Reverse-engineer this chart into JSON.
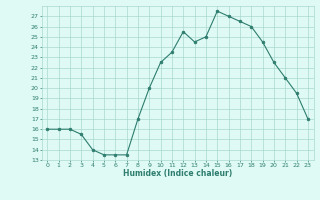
{
  "x": [
    0,
    1,
    2,
    3,
    4,
    5,
    6,
    7,
    8,
    9,
    10,
    11,
    12,
    13,
    14,
    15,
    16,
    17,
    18,
    19,
    20,
    21,
    22,
    23
  ],
  "y": [
    16,
    16,
    16,
    15.5,
    14,
    13.5,
    13.5,
    13.5,
    17,
    20,
    22.5,
    23.5,
    25.5,
    24.5,
    25,
    27.5,
    27,
    26.5,
    26,
    24.5,
    22.5,
    21,
    19.5,
    17
  ],
  "title": "",
  "xlabel": "Humidex (Indice chaleur)",
  "ylabel": "",
  "xlim": [
    -0.5,
    23.5
  ],
  "ylim": [
    13,
    28
  ],
  "yticks": [
    13,
    14,
    15,
    16,
    17,
    18,
    19,
    20,
    21,
    22,
    23,
    24,
    25,
    26,
    27
  ],
  "xticks": [
    0,
    1,
    2,
    3,
    4,
    5,
    6,
    7,
    8,
    9,
    10,
    11,
    12,
    13,
    14,
    15,
    16,
    17,
    18,
    19,
    20,
    21,
    22,
    23
  ],
  "line_color": "#2E7D6E",
  "marker_color": "#2E7D6E",
  "bg_color": "#DFFAF5",
  "grid_color": "#A8D8CF",
  "label_color": "#2E7D6E",
  "tick_color": "#2E7D6E"
}
